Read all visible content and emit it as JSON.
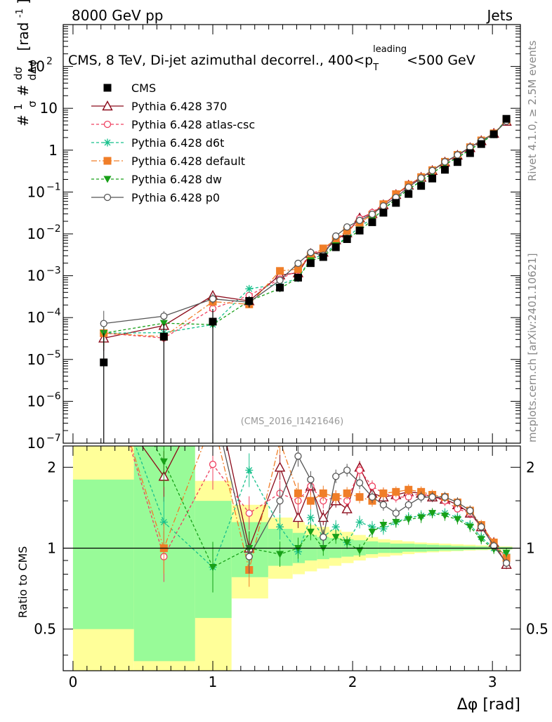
{
  "header": {
    "left": "8000 GeV pp",
    "right": "Jets"
  },
  "side_text": {
    "rivet": "Rivet 4.1.0, ≥ 2.5M events",
    "mcplots": "mcplots.cern.ch [arXiv:2401.10621]"
  },
  "chart_data": {
    "type": "line",
    "title": "CMS, 8 TeV, Di-jet azimuthal decorrel., 400<p_T^leading<500 GeV",
    "title_parts": {
      "main": "CMS, 8 TeV, Di-jet azimuthal decorrel., 400<p",
      "sub": "T",
      "sup": "leading",
      "tail": "<500 GeV"
    },
    "xlabel": "Δφ [rad]",
    "ylabel": "#1/σ #dσ/dΔφ [rad⁻¹]",
    "ylabel_parts": {
      "hash1": "#",
      "one": "1",
      "sigma": "σ",
      "hash2": "#",
      "num": "dσ",
      "den": "dΔφ",
      "unit": "[rad",
      "unit_sup": "-1",
      "unit_close": "]"
    },
    "ratio_ylabel": "Ratio to CMS",
    "watermark": "(CMS_2016_I1421646)",
    "x_range": [
      -0.07,
      3.2
    ],
    "y_range_log": [
      1e-07,
      1000
    ],
    "ratio_range_log": [
      0.35,
      2.4
    ],
    "x_ticks": [
      "0",
      "1",
      "2",
      "3"
    ],
    "y_ticks": [
      {
        "base": "10",
        "exp": "2",
        "value": 100
      },
      {
        "base": "10",
        "exp": "",
        "value": 10
      },
      {
        "base": "1",
        "exp": "",
        "value": 1
      },
      {
        "base": "10",
        "exp": "−1",
        "value": 0.1
      },
      {
        "base": "10",
        "exp": "−2",
        "value": 0.01
      },
      {
        "base": "10",
        "exp": "−3",
        "value": 0.001
      },
      {
        "base": "10",
        "exp": "−4",
        "value": 0.0001
      },
      {
        "base": "10",
        "exp": "−5",
        "value": 1e-05
      },
      {
        "base": "10",
        "exp": "−6",
        "value": 1e-06
      },
      {
        "base": "10",
        "exp": "−7",
        "value": 1e-07
      }
    ],
    "ratio_ticks": [
      "2",
      "1",
      "0.5"
    ],
    "ratio_tick_values": [
      2,
      1,
      0.5
    ],
    "x_bins": [
      0.0,
      0.436,
      0.873,
      1.134,
      1.396,
      1.571,
      1.658,
      1.745,
      1.833,
      1.92,
      2.007,
      2.094,
      2.182,
      2.269,
      2.356,
      2.443,
      2.531,
      2.618,
      2.705,
      2.793,
      2.88,
      2.967,
      3.054,
      3.142
    ],
    "cms": {
      "name": "CMS",
      "x": [
        0.22,
        0.65,
        1.0,
        1.26,
        1.48,
        1.61,
        1.7,
        1.79,
        1.88,
        1.96,
        2.05,
        2.14,
        2.22,
        2.31,
        2.4,
        2.49,
        2.57,
        2.66,
        2.75,
        2.84,
        2.92,
        3.01,
        3.1
      ],
      "y": [
        8.5e-06,
        3.5e-05,
        8e-05,
        0.00025,
        0.00052,
        0.0009,
        0.002,
        0.0028,
        0.0048,
        0.0075,
        0.012,
        0.019,
        0.032,
        0.055,
        0.09,
        0.14,
        0.21,
        0.34,
        0.52,
        0.85,
        1.4,
        2.4,
        5.6
      ],
      "yerr_rel": [
        4.0,
        1.0,
        1.0,
        0.3,
        0.2,
        0.15,
        0.1,
        0.08,
        0.06,
        0.05,
        0.05,
        0.04,
        0.04,
        0.03,
        0.03,
        0.03,
        0.02,
        0.02,
        0.02,
        0.02,
        0.02,
        0.01,
        0.01
      ],
      "band_inner": [
        [
          0.5,
          1.8
        ],
        [
          0.38,
          2.6
        ],
        [
          0.55,
          1.5
        ],
        [
          0.78,
          1.25
        ],
        [
          0.86,
          1.18
        ],
        [
          0.88,
          1.14
        ],
        [
          0.9,
          1.12
        ],
        [
          0.91,
          1.1
        ],
        [
          0.92,
          1.09
        ],
        [
          0.93,
          1.08
        ],
        [
          0.94,
          1.07
        ],
        [
          0.95,
          1.06
        ],
        [
          0.96,
          1.05
        ],
        [
          0.96,
          1.04
        ],
        [
          0.97,
          1.04
        ],
        [
          0.97,
          1.035
        ],
        [
          0.975,
          1.03
        ],
        [
          0.98,
          1.025
        ],
        [
          0.98,
          1.02
        ],
        [
          0.985,
          1.018
        ],
        [
          0.987,
          1.015
        ],
        [
          0.99,
          1.012
        ],
        [
          0.99,
          1.01
        ]
      ],
      "band_outer": [
        [
          0.3,
          2.6
        ],
        [
          0.3,
          2.6
        ],
        [
          0.32,
          1.78
        ],
        [
          0.65,
          1.45
        ],
        [
          0.77,
          1.3
        ],
        [
          0.8,
          1.25
        ],
        [
          0.82,
          1.22
        ],
        [
          0.84,
          1.2
        ],
        [
          0.86,
          1.17
        ],
        [
          0.88,
          1.15
        ],
        [
          0.9,
          1.12
        ],
        [
          0.92,
          1.1
        ],
        [
          0.93,
          1.08
        ],
        [
          0.94,
          1.07
        ],
        [
          0.95,
          1.06
        ],
        [
          0.96,
          1.05
        ],
        [
          0.965,
          1.045
        ],
        [
          0.97,
          1.04
        ],
        [
          0.975,
          1.035
        ],
        [
          0.98,
          1.03
        ],
        [
          0.983,
          1.025
        ],
        [
          0.985,
          1.02
        ],
        [
          0.988,
          1.015
        ]
      ]
    },
    "series": [
      {
        "name": "Pythia 6.428 370",
        "color": "#8b0a1a",
        "dash": "",
        "marker": "triangle-open",
        "ratio": [
          3.8,
          1.85,
          4.2,
          1.0,
          2.0,
          1.3,
          1.7,
          1.3,
          1.5,
          1.4,
          2.0,
          1.6,
          1.55,
          1.58,
          1.62,
          1.6,
          1.55,
          1.52,
          1.45,
          1.35,
          1.2,
          1.05,
          0.87
        ]
      },
      {
        "name": "Pythia 6.428 atlas-csc",
        "color": "#ef4060",
        "dash": "4,3",
        "marker": "circle-open",
        "ratio": [
          5.0,
          0.93,
          2.05,
          1.35,
          1.6,
          1.5,
          1.7,
          1.5,
          1.55,
          1.5,
          1.95,
          1.7,
          1.6,
          1.55,
          1.55,
          1.6,
          1.55,
          1.5,
          1.4,
          1.35,
          1.2,
          1.05,
          0.88
        ]
      },
      {
        "name": "Pythia 6.428 d6t",
        "color": "#18c08c",
        "dash": "4,3",
        "marker": "star",
        "ratio": [
          5.0,
          1.25,
          0.85,
          1.95,
          1.2,
          0.97,
          1.3,
          1.1,
          1.2,
          1.05,
          1.25,
          1.2,
          1.18,
          1.25,
          1.3,
          1.32,
          1.35,
          1.35,
          1.3,
          1.22,
          1.1,
          1.0,
          0.95
        ]
      },
      {
        "name": "Pythia 6.428 default",
        "color": "#f07e28",
        "dash": "8,3,2,3",
        "marker": "square",
        "ratio": [
          5.0,
          1.0,
          3.0,
          0.83,
          2.5,
          1.6,
          1.5,
          1.6,
          1.55,
          1.6,
          1.55,
          1.5,
          1.6,
          1.62,
          1.65,
          1.62,
          1.58,
          1.55,
          1.48,
          1.38,
          1.22,
          1.05,
          0.92
        ]
      },
      {
        "name": "Pythia 6.428 dw",
        "color": "#18a018",
        "dash": "4,3",
        "marker": "triangle-down",
        "ratio": [
          5.0,
          2.1,
          0.85,
          1.0,
          0.95,
          1.0,
          1.15,
          1.0,
          1.1,
          1.05,
          0.98,
          1.15,
          1.22,
          1.25,
          1.28,
          1.3,
          1.35,
          1.32,
          1.28,
          1.2,
          1.08,
          0.99,
          0.96
        ]
      },
      {
        "name": "Pythia 6.428 p0",
        "color": "#555555",
        "dash": "",
        "marker": "circle-open",
        "ratio": [
          8.5,
          3.1,
          3.5,
          0.93,
          1.5,
          2.2,
          1.8,
          1.1,
          1.85,
          1.95,
          1.75,
          1.55,
          1.45,
          1.35,
          1.45,
          1.55,
          1.55,
          1.55,
          1.48,
          1.38,
          1.2,
          1.02,
          0.88
        ]
      }
    ]
  }
}
